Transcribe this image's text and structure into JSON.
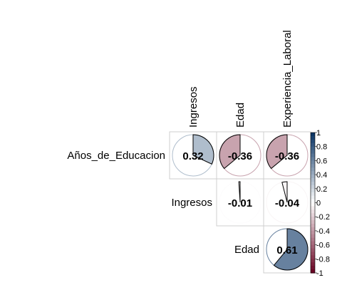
{
  "chart_data": {
    "type": "heatmap",
    "method": "pie",
    "matrix_shape": "upper",
    "column_labels": [
      "Ingresos",
      "Edad",
      "Experiencia_Laboral"
    ],
    "row_labels": [
      "Años_de_Educacion",
      "Ingresos",
      "Edad"
    ],
    "cells": [
      {
        "row": 0,
        "col": 0,
        "value": 0.32,
        "label": "0.32"
      },
      {
        "row": 0,
        "col": 1,
        "value": -0.36,
        "label": "-0.36"
      },
      {
        "row": 0,
        "col": 2,
        "value": -0.36,
        "label": "-0.36"
      },
      {
        "row": 1,
        "col": 1,
        "value": -0.01,
        "label": "-0.01"
      },
      {
        "row": 1,
        "col": 2,
        "value": -0.04,
        "label": "-0.04"
      },
      {
        "row": 2,
        "col": 2,
        "value": 0.61,
        "label": "0.61"
      }
    ],
    "color_scale": {
      "range": [
        -1,
        1
      ],
      "ticks": [
        "1",
        "0.8",
        "0.6",
        "0.4",
        "0.2",
        "0",
        "-0.2",
        "-0.4",
        "-0.6",
        "-0.8",
        "-1"
      ],
      "tick_values": [
        1,
        0.8,
        0.6,
        0.4,
        0.2,
        0,
        -0.2,
        -0.4,
        -0.6,
        -0.8,
        -1
      ],
      "low_color": "#67001F",
      "mid_color": "#FFFFFF",
      "high_color": "#053061"
    },
    "grid": true
  }
}
